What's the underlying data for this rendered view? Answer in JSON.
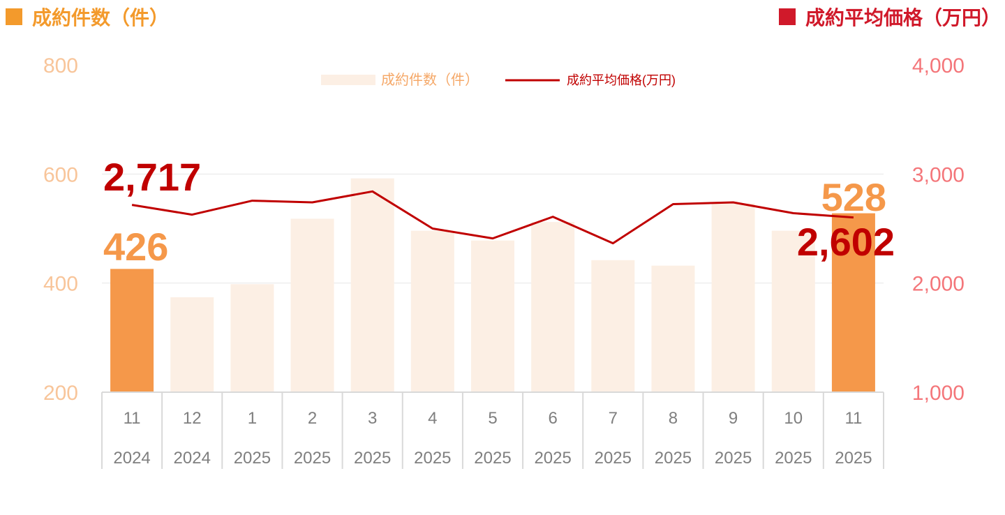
{
  "header": {
    "left_title": "成約件数（件）",
    "right_title": "成約平均価格（万円）",
    "left_color": "#f39a2c",
    "right_color": "#d0192a"
  },
  "chart_data": {
    "type": "bar+line",
    "categories": [
      {
        "month": "11",
        "year": "2024"
      },
      {
        "month": "12",
        "year": "2024"
      },
      {
        "month": "1",
        "year": "2025"
      },
      {
        "month": "2",
        "year": "2025"
      },
      {
        "month": "3",
        "year": "2025"
      },
      {
        "month": "4",
        "year": "2025"
      },
      {
        "month": "5",
        "year": "2025"
      },
      {
        "month": "6",
        "year": "2025"
      },
      {
        "month": "7",
        "year": "2025"
      },
      {
        "month": "8",
        "year": "2025"
      },
      {
        "month": "9",
        "year": "2025"
      },
      {
        "month": "10",
        "year": "2025"
      },
      {
        "month": "11",
        "year": "2025"
      }
    ],
    "series": [
      {
        "name": "成約件数（件）",
        "type": "bar",
        "axis": "left",
        "values": [
          426,
          374,
          398,
          518,
          592,
          496,
          478,
          512,
          442,
          432,
          546,
          496,
          528
        ],
        "highlight_indices": [
          0,
          12
        ],
        "color": "#fcefe4",
        "highlight_color": "#f5984a"
      },
      {
        "name": "成約平均価格(万円)",
        "type": "line",
        "axis": "right",
        "values": [
          2717,
          2627,
          2755,
          2740,
          2840,
          2500,
          2410,
          2608,
          2365,
          2724,
          2740,
          2641,
          2602
        ],
        "color": "#c00000"
      }
    ],
    "y_left": {
      "ticks": [
        "800",
        "600",
        "400",
        "200"
      ],
      "range": [
        200,
        800
      ],
      "color": "#f8c59a"
    },
    "y_right": {
      "ticks": [
        "4,000",
        "3,000",
        "2,000",
        "1,000"
      ],
      "range": [
        1000,
        4000
      ],
      "color": "#f4767a"
    },
    "data_labels": [
      {
        "text": "2,717",
        "series": 1,
        "index": 0,
        "color": "#c00000"
      },
      {
        "text": "426",
        "series": 0,
        "index": 0,
        "color": "#f5984a"
      },
      {
        "text": "528",
        "series": 0,
        "index": 12,
        "color": "#f5984a"
      },
      {
        "text": "2,602",
        "series": 1,
        "index": 12,
        "color": "#c00000"
      }
    ],
    "grid": true,
    "legend_position": "top-center"
  }
}
